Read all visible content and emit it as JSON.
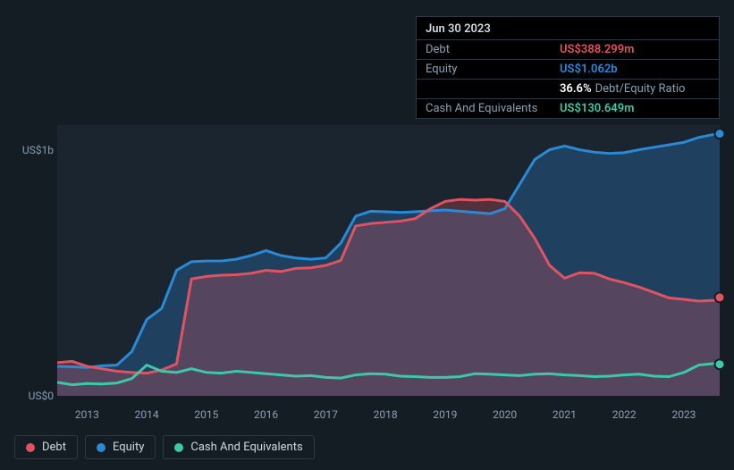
{
  "tooltip": {
    "date": "Jun 30 2023",
    "rows": [
      {
        "label": "Debt",
        "value": "US$388.299m",
        "color": "#e15361"
      },
      {
        "label": "Equity",
        "value": "US$1.062b",
        "color": "#2a8ad6"
      },
      {
        "label": "",
        "pct": "36.6%",
        "ratio_label": "Debt/Equity Ratio"
      },
      {
        "label": "Cash And Equivalents",
        "value": "US$130.649m",
        "color": "#3cc8a9"
      }
    ]
  },
  "chart": {
    "type": "area-line",
    "background_color": "#141c24",
    "plot_background_color": "#1b2530",
    "grid_color": "#2c3a47",
    "font_color": "#8aa0b3",
    "font_size": 12,
    "x_start": 2012.5,
    "x_end": 2023.6,
    "xticks": [
      2013,
      2014,
      2015,
      2016,
      2017,
      2018,
      2019,
      2020,
      2021,
      2022,
      2023
    ],
    "ylim": [
      0,
      1100
    ],
    "yticks": [
      {
        "v": 0,
        "label": "US$0"
      },
      {
        "v": 1000,
        "label": "US$1b"
      }
    ],
    "series": [
      {
        "name": "Equity",
        "color": "#2a8ad6",
        "fill_opacity": 0.28,
        "line_width": 2.2,
        "data": [
          [
            2012.5,
            120
          ],
          [
            2012.75,
            118
          ],
          [
            2013.0,
            115
          ],
          [
            2013.25,
            122
          ],
          [
            2013.5,
            125
          ],
          [
            2013.75,
            180
          ],
          [
            2014.0,
            310
          ],
          [
            2014.25,
            355
          ],
          [
            2014.5,
            510
          ],
          [
            2014.75,
            545
          ],
          [
            2015.0,
            548
          ],
          [
            2015.25,
            548
          ],
          [
            2015.5,
            555
          ],
          [
            2015.75,
            570
          ],
          [
            2016.0,
            590
          ],
          [
            2016.25,
            570
          ],
          [
            2016.5,
            560
          ],
          [
            2016.75,
            555
          ],
          [
            2017.0,
            560
          ],
          [
            2017.25,
            620
          ],
          [
            2017.5,
            730
          ],
          [
            2017.75,
            750
          ],
          [
            2018.0,
            748
          ],
          [
            2018.25,
            745
          ],
          [
            2018.5,
            748
          ],
          [
            2018.75,
            752
          ],
          [
            2019.0,
            755
          ],
          [
            2019.25,
            750
          ],
          [
            2019.5,
            745
          ],
          [
            2019.75,
            740
          ],
          [
            2020.0,
            760
          ],
          [
            2020.25,
            860
          ],
          [
            2020.5,
            960
          ],
          [
            2020.75,
            1000
          ],
          [
            2021.0,
            1015
          ],
          [
            2021.25,
            1000
          ],
          [
            2021.5,
            990
          ],
          [
            2021.75,
            985
          ],
          [
            2022.0,
            988
          ],
          [
            2022.25,
            1000
          ],
          [
            2022.5,
            1010
          ],
          [
            2022.75,
            1020
          ],
          [
            2023.0,
            1030
          ],
          [
            2023.25,
            1050
          ],
          [
            2023.5,
            1062
          ],
          [
            2023.6,
            1065
          ]
        ]
      },
      {
        "name": "Debt",
        "color": "#e15361",
        "fill_opacity": 0.28,
        "line_width": 2.2,
        "data": [
          [
            2012.5,
            135
          ],
          [
            2012.75,
            140
          ],
          [
            2013.0,
            120
          ],
          [
            2013.25,
            110
          ],
          [
            2013.5,
            100
          ],
          [
            2013.75,
            95
          ],
          [
            2014.0,
            92
          ],
          [
            2014.25,
            105
          ],
          [
            2014.5,
            130
          ],
          [
            2014.75,
            475
          ],
          [
            2015.0,
            485
          ],
          [
            2015.25,
            490
          ],
          [
            2015.5,
            492
          ],
          [
            2015.75,
            498
          ],
          [
            2016.0,
            510
          ],
          [
            2016.25,
            505
          ],
          [
            2016.5,
            518
          ],
          [
            2016.75,
            520
          ],
          [
            2017.0,
            530
          ],
          [
            2017.25,
            550
          ],
          [
            2017.5,
            690
          ],
          [
            2017.75,
            700
          ],
          [
            2018.0,
            705
          ],
          [
            2018.25,
            710
          ],
          [
            2018.5,
            720
          ],
          [
            2018.75,
            760
          ],
          [
            2019.0,
            790
          ],
          [
            2019.25,
            798
          ],
          [
            2019.5,
            795
          ],
          [
            2019.75,
            798
          ],
          [
            2020.0,
            790
          ],
          [
            2020.25,
            730
          ],
          [
            2020.5,
            640
          ],
          [
            2020.75,
            530
          ],
          [
            2021.0,
            478
          ],
          [
            2021.25,
            500
          ],
          [
            2021.5,
            498
          ],
          [
            2021.75,
            475
          ],
          [
            2022.0,
            460
          ],
          [
            2022.25,
            442
          ],
          [
            2022.5,
            420
          ],
          [
            2022.75,
            398
          ],
          [
            2023.0,
            392
          ],
          [
            2023.25,
            385
          ],
          [
            2023.5,
            388
          ],
          [
            2023.6,
            400
          ]
        ]
      },
      {
        "name": "Cash And Equivalents",
        "color": "#3cc8a9",
        "fill_opacity": 0,
        "line_width": 2.2,
        "data": [
          [
            2012.5,
            55
          ],
          [
            2012.75,
            45
          ],
          [
            2013.0,
            50
          ],
          [
            2013.25,
            48
          ],
          [
            2013.5,
            52
          ],
          [
            2013.75,
            70
          ],
          [
            2014.0,
            125
          ],
          [
            2014.25,
            100
          ],
          [
            2014.5,
            95
          ],
          [
            2014.75,
            110
          ],
          [
            2015.0,
            95
          ],
          [
            2015.25,
            92
          ],
          [
            2015.5,
            100
          ],
          [
            2015.75,
            95
          ],
          [
            2016.0,
            90
          ],
          [
            2016.25,
            85
          ],
          [
            2016.5,
            80
          ],
          [
            2016.75,
            82
          ],
          [
            2017.0,
            75
          ],
          [
            2017.25,
            72
          ],
          [
            2017.5,
            85
          ],
          [
            2017.75,
            90
          ],
          [
            2018.0,
            88
          ],
          [
            2018.25,
            80
          ],
          [
            2018.5,
            78
          ],
          [
            2018.75,
            75
          ],
          [
            2019.0,
            75
          ],
          [
            2019.25,
            78
          ],
          [
            2019.5,
            90
          ],
          [
            2019.75,
            88
          ],
          [
            2020.0,
            85
          ],
          [
            2020.25,
            82
          ],
          [
            2020.5,
            88
          ],
          [
            2020.75,
            90
          ],
          [
            2021.0,
            85
          ],
          [
            2021.25,
            82
          ],
          [
            2021.5,
            78
          ],
          [
            2021.75,
            80
          ],
          [
            2022.0,
            85
          ],
          [
            2022.25,
            88
          ],
          [
            2022.5,
            80
          ],
          [
            2022.75,
            78
          ],
          [
            2023.0,
            95
          ],
          [
            2023.25,
            125
          ],
          [
            2023.5,
            131
          ],
          [
            2023.6,
            128
          ]
        ]
      }
    ],
    "end_markers": [
      {
        "series": "Equity",
        "x": 2023.6,
        "y": 1065,
        "color": "#2a8ad6"
      },
      {
        "series": "Debt",
        "x": 2023.6,
        "y": 400,
        "color": "#e15361"
      },
      {
        "series": "Cash And Equivalents",
        "x": 2023.6,
        "y": 128,
        "color": "#3cc8a9"
      }
    ]
  },
  "legend": {
    "items": [
      {
        "label": "Debt",
        "color": "#e15361"
      },
      {
        "label": "Equity",
        "color": "#2a8ad6"
      },
      {
        "label": "Cash And Equivalents",
        "color": "#3cc8a9"
      }
    ]
  }
}
